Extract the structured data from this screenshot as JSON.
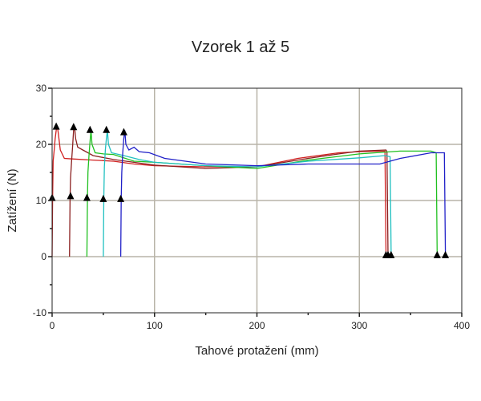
{
  "chart_data": {
    "type": "line",
    "title": "Vzorek 1 až 5",
    "xlabel": "Tahové protažení (mm)",
    "ylabel": "Zatížení (N)",
    "xlim": [
      0,
      400
    ],
    "ylim": [
      -10,
      30
    ],
    "xticks": [
      0,
      100,
      200,
      300,
      400
    ],
    "yticks": [
      -10,
      0,
      10,
      20,
      30
    ],
    "grid": true,
    "marker": "triangle-up",
    "series": [
      {
        "color": "#d02020",
        "points": [
          [
            0,
            0
          ],
          [
            0.5,
            10
          ],
          [
            1,
            17
          ],
          [
            2,
            19
          ],
          [
            3,
            21
          ],
          [
            4,
            22.5
          ],
          [
            5,
            23.3
          ],
          [
            6,
            22
          ],
          [
            8,
            19
          ],
          [
            12,
            17.5
          ],
          [
            20,
            17.4
          ],
          [
            40,
            17.2
          ],
          [
            60,
            17
          ],
          [
            80,
            16.5
          ],
          [
            100,
            16.2
          ],
          [
            150,
            16
          ],
          [
            200,
            16
          ],
          [
            240,
            17.5
          ],
          [
            280,
            18.5
          ],
          [
            300,
            18.7
          ],
          [
            325,
            18.8
          ],
          [
            326,
            0.5
          ]
        ],
        "markers": [
          [
            0,
            10.5
          ],
          [
            4,
            23.2
          ],
          [
            326,
            0.3
          ]
        ]
      },
      {
        "color": "#8b2020",
        "points": [
          [
            17,
            0
          ],
          [
            17.5,
            10.5
          ],
          [
            18,
            14
          ],
          [
            19,
            17
          ],
          [
            20,
            19.5
          ],
          [
            21,
            22.5
          ],
          [
            22,
            23
          ],
          [
            23,
            21
          ],
          [
            25,
            19.5
          ],
          [
            30,
            19
          ],
          [
            40,
            18
          ],
          [
            60,
            17.3
          ],
          [
            80,
            16.8
          ],
          [
            100,
            16.3
          ],
          [
            150,
            15.7
          ],
          [
            200,
            16
          ],
          [
            250,
            17.5
          ],
          [
            280,
            18.3
          ],
          [
            300,
            18.8
          ],
          [
            326,
            19
          ],
          [
            327,
            18.7
          ],
          [
            328,
            0.5
          ]
        ],
        "markers": [
          [
            18,
            10.8
          ],
          [
            21,
            23.1
          ],
          [
            328,
            0.3
          ]
        ]
      },
      {
        "color": "#20c020",
        "points": [
          [
            34,
            0
          ],
          [
            34.5,
            10.5
          ],
          [
            35,
            15
          ],
          [
            36,
            18
          ],
          [
            37,
            20.5
          ],
          [
            38,
            22.5
          ],
          [
            39,
            20
          ],
          [
            42,
            18.5
          ],
          [
            50,
            18.3
          ],
          [
            60,
            18.2
          ],
          [
            80,
            17
          ],
          [
            100,
            16.8
          ],
          [
            150,
            16.2
          ],
          [
            200,
            15.7
          ],
          [
            250,
            17.2
          ],
          [
            300,
            18.3
          ],
          [
            340,
            18.8
          ],
          [
            370,
            18.8
          ],
          [
            375,
            18.5
          ],
          [
            376,
            0.5
          ]
        ],
        "markers": [
          [
            34,
            10.5
          ],
          [
            37,
            22.6
          ],
          [
            376,
            0.3
          ]
        ]
      },
      {
        "color": "#20c0c0",
        "points": [
          [
            50,
            0
          ],
          [
            50.5,
            10.5
          ],
          [
            51,
            16
          ],
          [
            52,
            19
          ],
          [
            53,
            21
          ],
          [
            54,
            22.5
          ],
          [
            55,
            20
          ],
          [
            58,
            18.5
          ],
          [
            70,
            18
          ],
          [
            85,
            17.3
          ],
          [
            100,
            16.8
          ],
          [
            150,
            16.2
          ],
          [
            200,
            16
          ],
          [
            250,
            17
          ],
          [
            300,
            17.6
          ],
          [
            325,
            18
          ],
          [
            330,
            17.8
          ],
          [
            331,
            0.5
          ]
        ],
        "markers": [
          [
            50,
            10.3
          ],
          [
            53,
            22.6
          ],
          [
            331,
            0.3
          ]
        ]
      },
      {
        "color": "#2020c8",
        "points": [
          [
            67,
            0
          ],
          [
            67.5,
            10.3
          ],
          [
            68,
            15
          ],
          [
            69,
            18.5
          ],
          [
            70,
            21
          ],
          [
            71,
            22.5
          ],
          [
            72,
            20
          ],
          [
            75,
            19
          ],
          [
            80,
            19.5
          ],
          [
            85,
            18.7
          ],
          [
            95,
            18.5
          ],
          [
            110,
            17.5
          ],
          [
            150,
            16.5
          ],
          [
            200,
            16.2
          ],
          [
            250,
            16.5
          ],
          [
            300,
            16.5
          ],
          [
            320,
            16.5
          ],
          [
            340,
            17.5
          ],
          [
            370,
            18.5
          ],
          [
            383,
            18.5
          ],
          [
            384,
            0.5
          ]
        ],
        "markers": [
          [
            67,
            10.3
          ],
          [
            70,
            22.2
          ],
          [
            384,
            0.3
          ]
        ]
      }
    ]
  }
}
